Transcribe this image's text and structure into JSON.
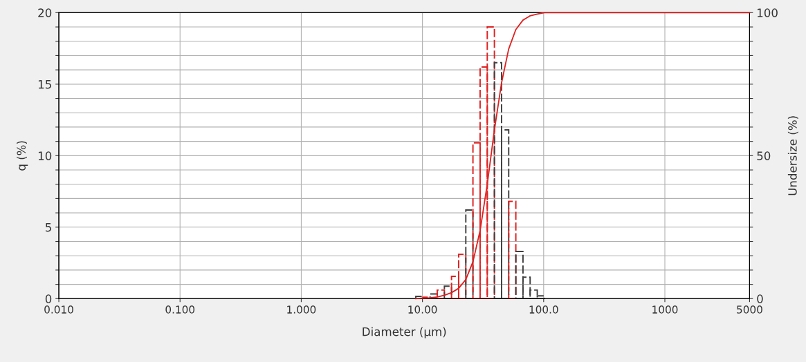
{
  "chart_data": {
    "type": "histogram",
    "xlabel": "Diameter (µm)",
    "ylabel": "q (%)",
    "y2label": "Undersize (%)",
    "log": "x",
    "grid": true,
    "tick_labels": "xy",
    "xlim": [
      0.01,
      5000
    ],
    "xticks": [
      {
        "value": 0.01,
        "label": "0.010"
      },
      {
        "value": 0.1,
        "label": "0.100"
      },
      {
        "value": 1,
        "label": "1.000"
      },
      {
        "value": 10,
        "label": "10.00"
      },
      {
        "value": 100,
        "label": "100.0"
      },
      {
        "value": 1000,
        "label": "1000"
      },
      {
        "value": 5000,
        "label": "5000"
      }
    ],
    "ylim": [
      0,
      20
    ],
    "yticks": [
      0,
      {
        "value": 1,
        "label": null
      },
      {
        "value": 2,
        "label": null
      },
      {
        "value": 3,
        "label": null
      },
      {
        "value": 4,
        "label": null
      },
      5,
      {
        "value": 6,
        "label": null
      },
      {
        "value": 7,
        "label": null
      },
      {
        "value": 8,
        "label": null
      },
      {
        "value": 9,
        "label": null
      },
      10,
      {
        "value": 11,
        "label": null
      },
      {
        "value": 12,
        "label": null
      },
      {
        "value": 13,
        "label": null
      },
      {
        "value": 14,
        "label": null
      },
      15,
      {
        "value": 16,
        "label": null
      },
      {
        "value": 17,
        "label": null
      },
      {
        "value": 18,
        "label": null
      },
      {
        "value": 19,
        "label": null
      },
      20
    ],
    "y2lim": [
      0,
      100
    ],
    "y2ticks": [
      0,
      {
        "value": 5,
        "label": null
      },
      {
        "value": 10,
        "label": null
      },
      {
        "value": 15,
        "label": null
      },
      {
        "value": 20,
        "label": null
      },
      {
        "value": 25,
        "label": null
      },
      {
        "value": 30,
        "label": null
      },
      {
        "value": 35,
        "label": null
      },
      {
        "value": 40,
        "label": null
      },
      {
        "value": 45,
        "label": null
      },
      50,
      {
        "value": 55,
        "label": null
      },
      {
        "value": 60,
        "label": null
      },
      {
        "value": 65,
        "label": null
      },
      {
        "value": 70,
        "label": null
      },
      {
        "value": 75,
        "label": null
      },
      {
        "value": 80,
        "label": null
      },
      {
        "value": 85,
        "label": null
      },
      {
        "value": 90,
        "label": null
      },
      {
        "value": 95,
        "label": null
      },
      100
    ],
    "bins": [
      8.816,
      10.11,
      11.56,
      13.24,
      15.17,
      17.37,
      19.89,
      22.79,
      26.1,
      29.9,
      34.25,
      39.23,
      44.94,
      51.47,
      58.95,
      67.52,
      77.34,
      88.58,
      101.46
    ],
    "values": [
      0.16,
      0.1,
      0.33,
      0.6,
      0.87,
      1.56,
      3.1,
      6.2,
      10.9,
      16.2,
      19.0,
      16.5,
      11.8,
      6.8,
      3.3,
      1.5,
      0.6,
      0.2
    ],
    "colors": [
      "#404040",
      "#e02020",
      "#404040",
      "#e02020",
      "#404040",
      "#e02020",
      "#e02020",
      "#404040",
      "#e02020",
      "#e02020",
      "#e02020",
      "#404040",
      "#404040",
      "#e02020",
      "#404040",
      "#404040",
      "#404040",
      "#404040"
    ],
    "series": [
      {
        "type": "line",
        "axis": "y2",
        "color": "#e02020",
        "x": [
          8.816,
          10.11,
          11.56,
          13.24,
          15.17,
          17.37,
          19.89,
          22.79,
          26.1,
          29.9,
          34.25,
          39.23,
          44.94,
          51.47,
          58.95,
          67.52,
          77.34,
          88.58,
          101.46,
          5000
        ],
        "values": [
          0,
          0.2,
          0.3,
          0.6,
          1.2,
          2.1,
          3.6,
          6.7,
          12.9,
          23.8,
          40.0,
          59.0,
          75.5,
          87.3,
          94.1,
          97.4,
          98.9,
          99.5,
          100,
          100
        ]
      }
    ]
  }
}
